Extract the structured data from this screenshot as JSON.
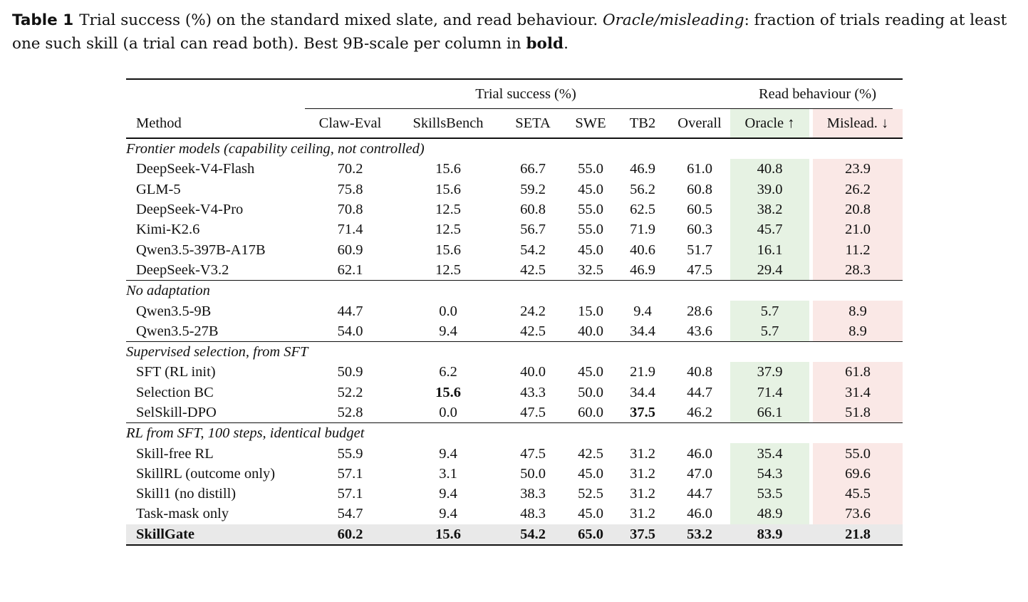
{
  "caption": {
    "label": "Table 1",
    "part1": "Trial success (%) on the standard mixed slate, and read behaviour.",
    "emph": "Oracle/misleading",
    "part2": ": fraction of trials reading at least one such skill (a trial can read both). Best 9B-scale per column in",
    "bold": "bold",
    "end": "."
  },
  "header": {
    "trial_success": "Trial success (%)",
    "read_behaviour": "Read behaviour (%)",
    "method": "Method",
    "columns": [
      "Claw-Eval",
      "SkillsBench",
      "SETA",
      "SWE",
      "TB2",
      "Overall",
      "Oracle ↑",
      "Mislead. ↓"
    ]
  },
  "groups": [
    {
      "title": "Frontier models (capability ceiling, not controlled)",
      "rows": [
        {
          "name": "DeepSeek-V4-Flash",
          "v": [
            "70.2",
            "15.6",
            "66.7",
            "55.0",
            "46.9",
            "61.0",
            "40.8",
            "23.9"
          ]
        },
        {
          "name": "GLM-5",
          "v": [
            "75.8",
            "15.6",
            "59.2",
            "45.0",
            "56.2",
            "60.8",
            "39.0",
            "26.2"
          ]
        },
        {
          "name": "DeepSeek-V4-Pro",
          "v": [
            "70.8",
            "12.5",
            "60.8",
            "55.0",
            "62.5",
            "60.5",
            "38.2",
            "20.8"
          ]
        },
        {
          "name": "Kimi-K2.6",
          "v": [
            "71.4",
            "12.5",
            "56.7",
            "55.0",
            "71.9",
            "60.3",
            "45.7",
            "21.0"
          ]
        },
        {
          "name": "Qwen3.5-397B-A17B",
          "v": [
            "60.9",
            "15.6",
            "54.2",
            "45.0",
            "40.6",
            "51.7",
            "16.1",
            "11.2"
          ]
        },
        {
          "name": "DeepSeek-V3.2",
          "v": [
            "62.1",
            "12.5",
            "42.5",
            "32.5",
            "46.9",
            "47.5",
            "29.4",
            "28.3"
          ]
        }
      ]
    },
    {
      "title": "No adaptation",
      "rows": [
        {
          "name": "Qwen3.5-9B",
          "v": [
            "44.7",
            "0.0",
            "24.2",
            "15.0",
            "9.4",
            "28.6",
            "5.7",
            "8.9"
          ]
        },
        {
          "name": "Qwen3.5-27B",
          "v": [
            "54.0",
            "9.4",
            "42.5",
            "40.0",
            "34.4",
            "43.6",
            "5.7",
            "8.9"
          ]
        }
      ]
    },
    {
      "title": "Supervised selection, from SFT",
      "rows": [
        {
          "name": "SFT (RL init)",
          "v": [
            "50.9",
            "6.2",
            "40.0",
            "45.0",
            "21.9",
            "40.8",
            "37.9",
            "61.8"
          ]
        },
        {
          "name": "Selection BC",
          "v": [
            "52.2",
            "15.6",
            "43.3",
            "50.0",
            "34.4",
            "44.7",
            "71.4",
            "31.4"
          ],
          "bold": [
            1
          ]
        },
        {
          "name": "SelSkill-DPO",
          "v": [
            "52.8",
            "0.0",
            "47.5",
            "60.0",
            "37.5",
            "46.2",
            "66.1",
            "51.8"
          ],
          "bold": [
            4
          ]
        }
      ]
    },
    {
      "title": "RL from SFT, 100 steps, identical budget",
      "rows": [
        {
          "name": "Skill-free RL",
          "v": [
            "55.9",
            "9.4",
            "47.5",
            "42.5",
            "31.2",
            "46.0",
            "35.4",
            "55.0"
          ]
        },
        {
          "name": "SkillRL (outcome only)",
          "v": [
            "57.1",
            "3.1",
            "50.0",
            "45.0",
            "31.2",
            "47.0",
            "54.3",
            "69.6"
          ]
        },
        {
          "name": "Skill1 (no distill)",
          "v": [
            "57.1",
            "9.4",
            "38.3",
            "52.5",
            "31.2",
            "44.7",
            "53.5",
            "45.5"
          ]
        },
        {
          "name": "Task-mask only",
          "v": [
            "54.7",
            "9.4",
            "48.3",
            "45.0",
            "31.2",
            "46.0",
            "48.9",
            "73.6"
          ]
        },
        {
          "name": "SkillGate",
          "v": [
            "60.2",
            "15.6",
            "54.2",
            "65.0",
            "37.5",
            "53.2",
            "83.9",
            "21.8"
          ],
          "highlight": true
        }
      ]
    }
  ]
}
